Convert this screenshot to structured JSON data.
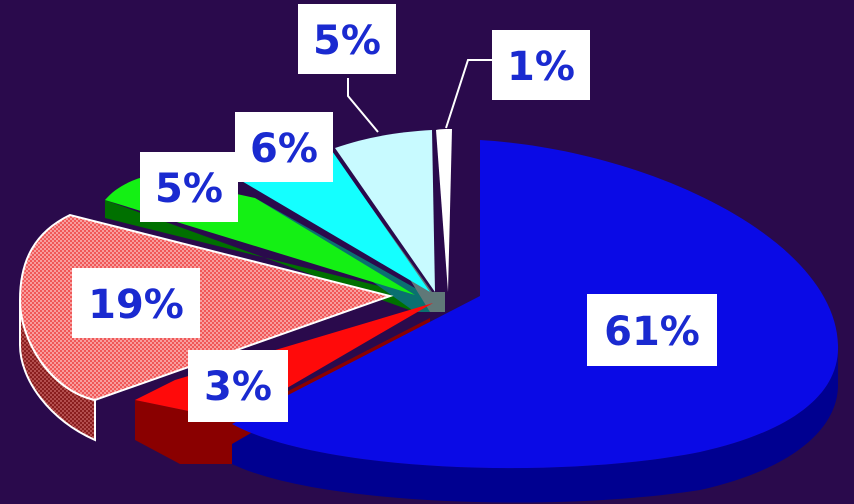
{
  "chart_data": {
    "type": "pie",
    "title": "",
    "values": [
      61,
      3,
      19,
      5,
      6,
      5,
      1
    ],
    "labels": [
      "61%",
      "3%",
      "19%",
      "5%",
      "6%",
      "5%",
      "1%"
    ],
    "colors": {
      "blue": "#0a0ae6",
      "red": "#ff0a0a",
      "salmon": "#f05858",
      "green": "#14f014",
      "cyan": "#14ffff",
      "light_cyan": "#c8faff",
      "white": "#ffffff",
      "background": "#2a0a4c",
      "label_text": "#1a2ad0"
    }
  }
}
